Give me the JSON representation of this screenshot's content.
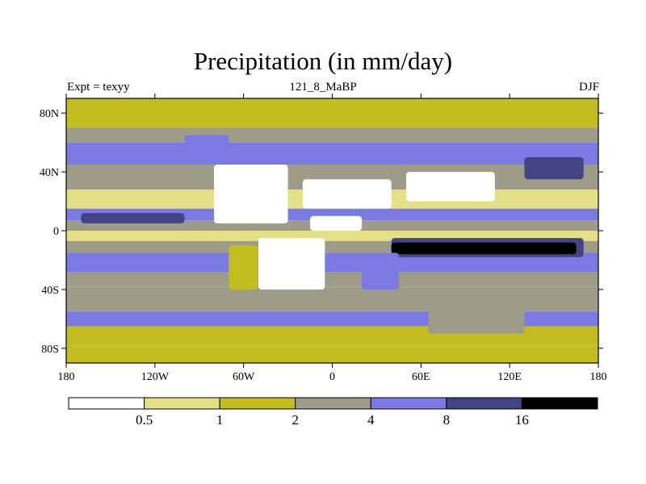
{
  "header": {
    "title": "Precipitation (in mm/day)",
    "left_label": "Expt = texyy",
    "center_label": "121_8_MaBP",
    "right_label": "DJF"
  },
  "chart_data": {
    "type": "heatmap",
    "title": "Precipitation (in mm/day)",
    "subtitle_left": "Expt = texyy",
    "subtitle_center": "121_8_MaBP",
    "subtitle_right": "DJF",
    "x_ticks": [
      "180",
      "120W",
      "60W",
      "0",
      "60E",
      "120E",
      "180"
    ],
    "x_tick_values": [
      -180,
      -120,
      -60,
      0,
      60,
      120,
      180
    ],
    "y_ticks": [
      "80N",
      "40N",
      "0",
      "40S",
      "80S"
    ],
    "y_tick_values": [
      80,
      40,
      0,
      -40,
      -80
    ],
    "xlim": [
      -180,
      180
    ],
    "ylim": [
      -90,
      90
    ],
    "colorbar": {
      "levels": [
        "0.5",
        "1",
        "2",
        "4",
        "8",
        "16"
      ],
      "level_values": [
        0.5,
        1,
        2,
        4,
        8,
        16
      ],
      "colors": [
        "#ffffff",
        "#e3e088",
        "#c3bd22",
        "#9d9c89",
        "#7b7ae3",
        "#444484",
        "#000000"
      ],
      "placement": "bottom"
    },
    "zonal_bands": [
      {
        "lat_range": [
          70,
          90
        ],
        "category": 2
      },
      {
        "lat_range": [
          60,
          70
        ],
        "category": 3
      },
      {
        "lat_range": [
          45,
          60
        ],
        "category": 4
      },
      {
        "lat_range": [
          28,
          45
        ],
        "category": 3
      },
      {
        "lat_range": [
          15,
          28
        ],
        "category": 1
      },
      {
        "lat_range": [
          7,
          15
        ],
        "category": 4
      },
      {
        "lat_range": [
          0,
          7
        ],
        "category": 3
      },
      {
        "lat_range": [
          -7,
          0
        ],
        "category": 1
      },
      {
        "lat_range": [
          -15,
          -7
        ],
        "category": 3
      },
      {
        "lat_range": [
          -28,
          -15
        ],
        "category": 4
      },
      {
        "lat_range": [
          -38,
          -28
        ],
        "category": 3
      },
      {
        "lat_range": [
          -55,
          -38
        ],
        "category": 3
      },
      {
        "lat_range": [
          -65,
          -55
        ],
        "category": 4
      },
      {
        "lat_range": [
          -78,
          -65
        ],
        "category": 2
      },
      {
        "lat_range": [
          -90,
          -78
        ],
        "category": 2
      }
    ],
    "regions": [
      {
        "lon": [
          -80,
          -30
        ],
        "lat": [
          5,
          45
        ],
        "category": 0
      },
      {
        "lon": [
          -20,
          40
        ],
        "lat": [
          15,
          35
        ],
        "category": 0
      },
      {
        "lon": [
          50,
          110
        ],
        "lat": [
          20,
          40
        ],
        "category": 0
      },
      {
        "lon": [
          -15,
          20
        ],
        "lat": [
          0,
          10
        ],
        "category": 0
      },
      {
        "lon": [
          -50,
          -5
        ],
        "lat": [
          -40,
          -5
        ],
        "category": 0
      },
      {
        "lon": [
          130,
          170
        ],
        "lat": [
          35,
          50
        ],
        "category": 5
      },
      {
        "lon": [
          40,
          170
        ],
        "lat": [
          -18,
          -5
        ],
        "category": 5
      },
      {
        "lon": [
          -170,
          -100
        ],
        "lat": [
          5,
          12
        ],
        "category": 5
      },
      {
        "lon": [
          40,
          165
        ],
        "lat": [
          -16,
          -8
        ],
        "category": 6
      },
      {
        "lon": [
          20,
          45
        ],
        "lat": [
          -40,
          -15
        ],
        "category": 4
      },
      {
        "lon": [
          -70,
          -50
        ],
        "lat": [
          -40,
          -10
        ],
        "category": 2
      },
      {
        "lon": [
          65,
          130
        ],
        "lat": [
          -70,
          -50
        ],
        "category": 3
      },
      {
        "lon": [
          -100,
          -70
        ],
        "lat": [
          50,
          65
        ],
        "category": 4
      }
    ]
  }
}
